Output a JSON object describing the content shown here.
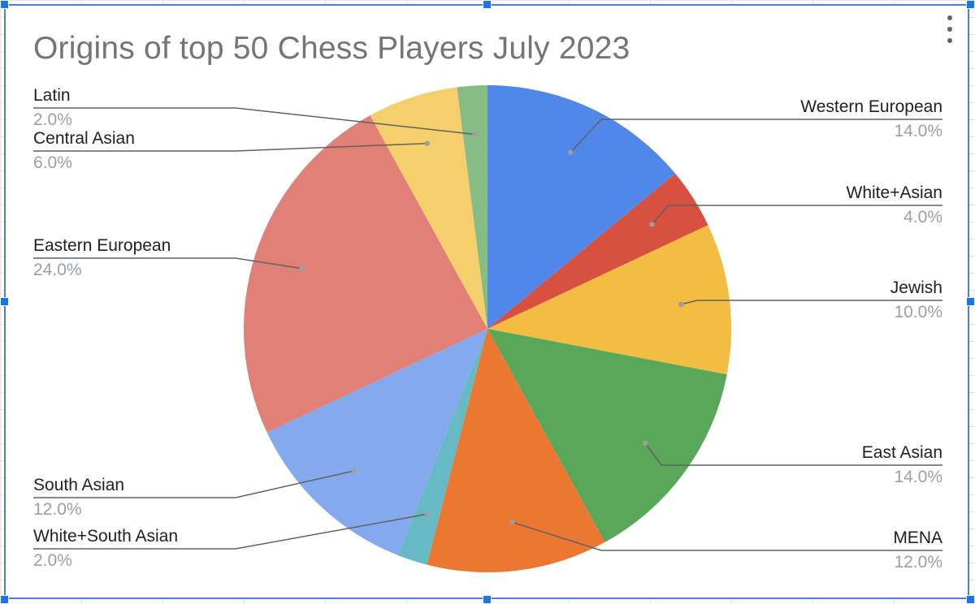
{
  "chart_data": {
    "type": "pie",
    "title": "Origins of top 50 Chess Players July 2023",
    "slices": [
      {
        "label": "Western European",
        "value": 14.0,
        "pct_label": "14.0%",
        "color": "#5087e8"
      },
      {
        "label": "White+Asian",
        "value": 4.0,
        "pct_label": "4.0%",
        "color": "#d85040"
      },
      {
        "label": "Jewish",
        "value": 10.0,
        "pct_label": "10.0%",
        "color": "#f3bc42"
      },
      {
        "label": "East Asian",
        "value": 14.0,
        "pct_label": "14.0%",
        "color": "#59a85a"
      },
      {
        "label": "MENA",
        "value": 12.0,
        "pct_label": "12.0%",
        "color": "#ec7731"
      },
      {
        "label": "White+South Asian",
        "value": 2.0,
        "pct_label": "2.0%",
        "color": "#65bac4"
      },
      {
        "label": "South Asian",
        "value": 12.0,
        "pct_label": "12.0%",
        "color": "#85a9ef"
      },
      {
        "label": "Eastern European",
        "value": 24.0,
        "pct_label": "24.0%",
        "color": "#e18076"
      },
      {
        "label": "Central Asian",
        "value": 6.0,
        "pct_label": "6.0%",
        "color": "#f4cf6b"
      },
      {
        "label": "Latin",
        "value": 2.0,
        "pct_label": "2.0%",
        "color": "#85bd85"
      }
    ],
    "legend": "none",
    "label_style": "callout"
  },
  "toolbar": {
    "menu_icon": "more-vert-icon"
  }
}
